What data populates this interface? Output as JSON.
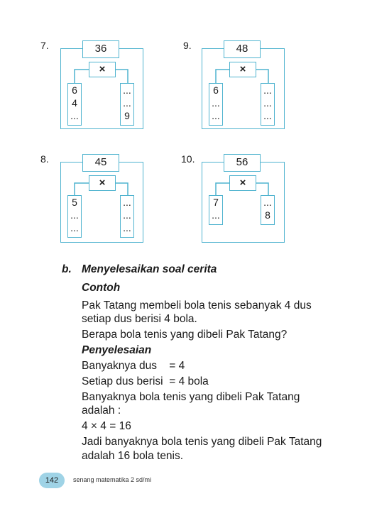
{
  "problems": [
    {
      "number": "7.",
      "product": "36",
      "operator": "×",
      "left": [
        "6",
        "4",
        "..."
      ],
      "right": [
        "...",
        "...",
        "9"
      ]
    },
    {
      "number": "9.",
      "product": "48",
      "operator": "×",
      "left": [
        "6",
        "...",
        "..."
      ],
      "right": [
        "...",
        "...",
        "..."
      ]
    },
    {
      "number": "8.",
      "product": "45",
      "operator": "×",
      "left": [
        "5",
        "...",
        "..."
      ],
      "right": [
        "...",
        "...",
        "..."
      ]
    },
    {
      "number": "10.",
      "product": "56",
      "operator": "×",
      "left": [
        "7",
        "..."
      ],
      "right": [
        "...",
        "8"
      ]
    }
  ],
  "section": {
    "label": "b.",
    "title": "Menyelesaikan soal cerita",
    "example_heading": "Contoh",
    "example_lines": [
      "Pak Tatang membeli bola tenis sebanyak 4 dus",
      "setiap dus berisi 4 bola.",
      "Berapa bola tenis yang dibeli Pak Tatang?"
    ],
    "solution_heading": "Penyelesaian",
    "solution_lines": [
      "Banyaknya dus    = 4",
      "Setiap dus berisi  = 4 bola",
      "Banyaknya bola tenis yang dibeli Pak Tatang",
      "adalah :",
      "4 × 4 = 16",
      "Jadi banyaknya bola tenis yang dibeli Pak Tatang",
      "adalah 16 bola tenis."
    ]
  },
  "footer": {
    "page_number": "142",
    "book_title": "senang matematika 2 sd/mi"
  },
  "colors": {
    "box_border": "#4fb3cf",
    "page_badge": "#9fd3e6"
  }
}
